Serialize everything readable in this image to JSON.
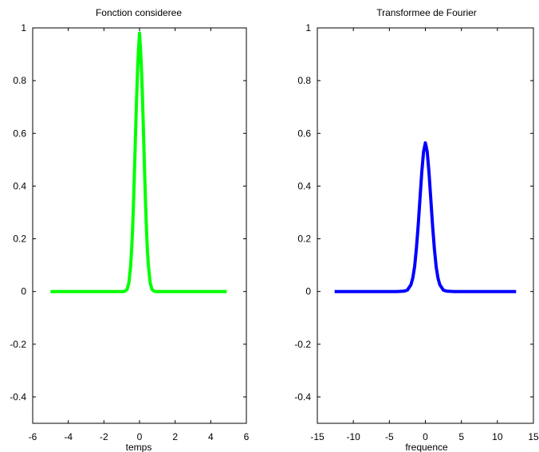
{
  "chart_data": [
    {
      "type": "line",
      "title": "Fonction consideree",
      "xlabel": "temps",
      "ylabel": "",
      "xlim": [
        -6,
        6
      ],
      "ylim": [
        -0.5,
        1
      ],
      "xticks": [
        "-6",
        "-4",
        "-2",
        "0",
        "2",
        "4",
        "6"
      ],
      "yticks": [
        "-0.4",
        "-0.2",
        "0",
        "0.2",
        "0.4",
        "0.6",
        "0.8",
        "1"
      ],
      "grid": false,
      "series": [
        {
          "color": "#00ff00",
          "x": [
            -5,
            -4.5,
            -4,
            -3.5,
            -3,
            -2.5,
            -2,
            -1.5,
            -1,
            -0.9,
            -0.8,
            -0.7,
            -0.6,
            -0.5,
            -0.45,
            -0.4,
            -0.35,
            -0.3,
            -0.25,
            -0.2,
            -0.15,
            -0.1,
            -0.05,
            0,
            0.05,
            0.1,
            0.15,
            0.2,
            0.25,
            0.3,
            0.35,
            0.4,
            0.45,
            0.5,
            0.6,
            0.7,
            0.8,
            0.9,
            1,
            1.5,
            2,
            2.5,
            3,
            3.5,
            4,
            4.5,
            4.9
          ],
          "y": [
            0,
            0,
            0,
            0,
            0,
            0,
            0,
            0,
            0.0,
            0.0,
            0.002,
            0.008,
            0.032,
            0.096,
            0.149,
            0.221,
            0.312,
            0.419,
            0.535,
            0.654,
            0.765,
            0.859,
            0.927,
            0.98,
            0.927,
            0.859,
            0.765,
            0.654,
            0.535,
            0.419,
            0.312,
            0.221,
            0.149,
            0.096,
            0.032,
            0.008,
            0.002,
            0.0,
            0,
            0,
            0,
            0,
            0,
            0,
            0,
            0,
            0
          ]
        }
      ]
    },
    {
      "type": "line",
      "title": "Transformee de Fourier",
      "xlabel": "frequence",
      "ylabel": "",
      "xlim": [
        -15,
        15
      ],
      "ylim": [
        -0.5,
        1
      ],
      "xticks": [
        "-15",
        "-10",
        "-5",
        "0",
        "5",
        "10",
        "15"
      ],
      "yticks": [
        "-0.4",
        "-0.2",
        "0",
        "0.2",
        "0.4",
        "0.6",
        "0.8",
        "1"
      ],
      "grid": false,
      "series": [
        {
          "color": "#0000ff",
          "x": [
            -12.6,
            -10,
            -8,
            -6,
            -4,
            -3,
            -2.5,
            -2,
            -1.75,
            -1.5,
            -1.25,
            -1,
            -0.75,
            -0.5,
            -0.25,
            0,
            0.25,
            0.5,
            0.75,
            1,
            1.25,
            1.5,
            1.75,
            2,
            2.5,
            3,
            4,
            6,
            8,
            10,
            12.6
          ],
          "y": [
            0,
            0,
            0,
            0,
            0,
            0.001,
            0.005,
            0.026,
            0.051,
            0.094,
            0.162,
            0.251,
            0.351,
            0.453,
            0.53,
            0.564,
            0.53,
            0.453,
            0.351,
            0.251,
            0.162,
            0.094,
            0.051,
            0.026,
            0.005,
            0.001,
            0,
            0,
            0,
            0,
            0
          ]
        }
      ]
    }
  ]
}
